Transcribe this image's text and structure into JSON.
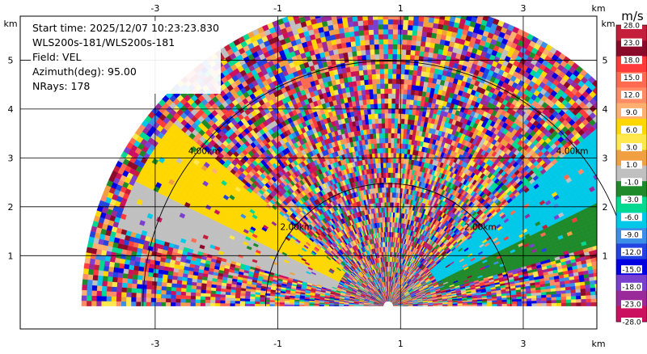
{
  "chart_data": {
    "type": "heatmap",
    "subtype": "radar-rhi-sector",
    "info": {
      "start_time": "Start time: 2025/12/07 10:23:23.830",
      "instrument": "WLS200s-181/WLS200s-181",
      "field": "Field: VEL",
      "azimuth": "Azimuth(deg): 95.00",
      "nrays": "NRays: 178"
    },
    "x_axis": {
      "unit": "km",
      "range": [
        -5.2,
        4.2
      ],
      "ticks": [
        -3,
        -1,
        1,
        3
      ],
      "tick_labels": [
        "-3",
        "-1",
        "1",
        "3"
      ]
    },
    "y_axis": {
      "unit": "km",
      "range": [
        -0.5,
        5.9
      ],
      "ticks": [
        1,
        2,
        3,
        4,
        5
      ],
      "tick_labels": [
        "1",
        "2",
        "3",
        "4",
        "5"
      ]
    },
    "grid": true,
    "range_rings": [
      {
        "radius_km": 2.0,
        "label": "2.00km"
      },
      {
        "radius_km": 4.0,
        "label": "4.00km"
      }
    ],
    "outer_range_km": 5.0,
    "radar_origin_km": [
      0.8,
      0.0
    ],
    "colorbar": {
      "unit": "m/s",
      "ticks": [
        "28.0",
        "23.0",
        "18.0",
        "15.0",
        "12.0",
        "9.0",
        "6.0",
        "3.0",
        "1.0",
        "-1.0",
        "-3.0",
        "-6.0",
        "-9.0",
        "-12.0",
        "-15.0",
        "-18.0",
        "-23.0",
        "-28.0"
      ],
      "colors": [
        "#c41e3a",
        "#8b0a2a",
        "#ff3b3b",
        "#ff6a50",
        "#ff8c66",
        "#ffb070",
        "#ffd700",
        "#ffe84d",
        "#f0a040",
        "#c0c0c0",
        "#1f8a2a",
        "#00d98f",
        "#00c8e8",
        "#3b8fe8",
        "#2244e0",
        "#0000e0",
        "#7b3fd0",
        "#9a2a9a",
        "#cc1060"
      ]
    },
    "bands": [
      {
        "elev_deg_from": 26,
        "elev_deg_to": 40,
        "left_color": "#00c8e8",
        "right_color": "#ffd700"
      },
      {
        "elev_deg_from": 16,
        "elev_deg_to": 26,
        "left_color": "#1f8a2a",
        "right_color": "#c0c0c0"
      }
    ]
  }
}
